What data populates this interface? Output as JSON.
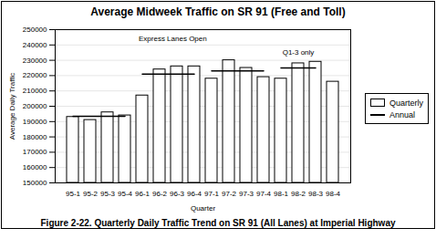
{
  "chart_data": {
    "type": "bar",
    "title": "Average Midweek Traffic on SR 91 (Free and Toll)",
    "caption": "Figure 2-22. Quarterly Daily Traffic Trend on SR 91 (All Lanes) at Imperial Highway",
    "x_label": "Quarter",
    "y_label": "Average Daily Traffic",
    "categories": [
      "95-1",
      "95-2",
      "95-3",
      "95-4",
      "96-1",
      "96-2",
      "96-3",
      "96-4",
      "97-1",
      "97-2",
      "97-3",
      "97-4",
      "98-1",
      "98-2",
      "98-3",
      "98-4"
    ],
    "series": [
      {
        "name": "Quarterly",
        "type": "bar",
        "color": "#ffffff",
        "values": [
          193000,
          191000,
          196000,
          194000,
          207000,
          224000,
          226000,
          226000,
          218000,
          230000,
          225000,
          219000,
          218000,
          228000,
          229000,
          216000
        ]
      },
      {
        "name": "Annual",
        "type": "line",
        "color": "#000000",
        "values": [
          193500,
          193500,
          193500,
          193500,
          221000,
          221000,
          221000,
          221000,
          223000,
          223000,
          223000,
          223000,
          225000,
          225000,
          225000,
          null
        ]
      }
    ],
    "annotations": [
      {
        "text": "Express Lanes Open",
        "x": "96-1",
        "y": 244000
      },
      {
        "text": "Q1-3 only",
        "x": "98-2",
        "y": 235000
      }
    ],
    "ylim": [
      150000,
      250000
    ],
    "yticks": [
      150000,
      160000,
      170000,
      180000,
      190000,
      200000,
      210000,
      220000,
      230000,
      240000,
      250000
    ],
    "grid": true,
    "legend": "right"
  }
}
